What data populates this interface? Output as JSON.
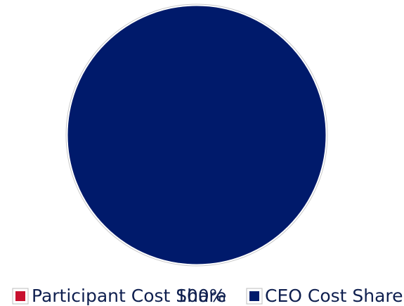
{
  "chart_data": {
    "type": "pie",
    "categories": [
      "Participant Cost Share",
      "CEO Cost Share"
    ],
    "values": [
      0,
      100
    ],
    "data_labels": [
      "",
      "100%"
    ],
    "colors": [
      "#c8102e",
      "#001a6b"
    ],
    "legend_position": "bottom"
  }
}
